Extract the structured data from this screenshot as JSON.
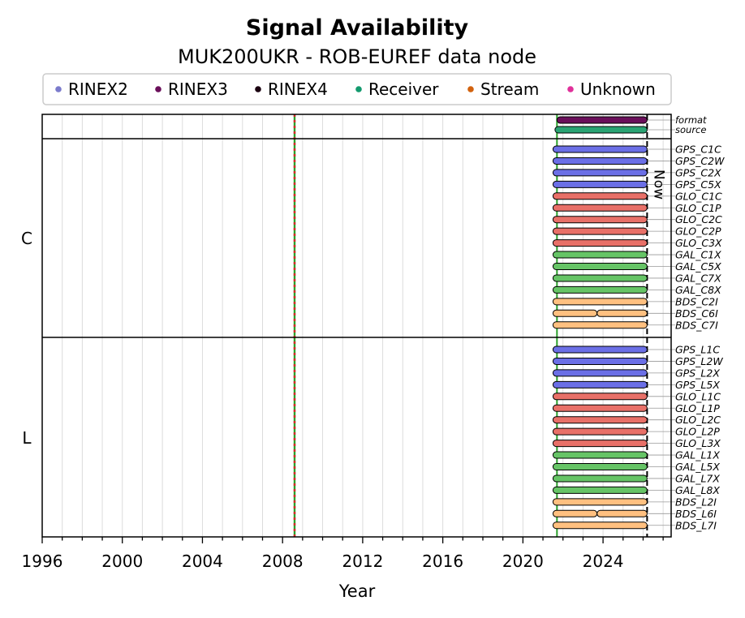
{
  "chart_data": {
    "type": "timeline",
    "title": "Signal Availability",
    "subtitle": "MUK200UKR - ROB-EUREF data node",
    "xlabel": "Year",
    "xlim": [
      1996,
      2027.4
    ],
    "xticks_major": [
      1996,
      2000,
      2004,
      2008,
      2012,
      2016,
      2020,
      2024
    ],
    "now_label": "Now",
    "now_year": 2026.2,
    "vlines": [
      {
        "year": 2008.6,
        "colors": [
          "#2ca02c",
          "#d62728"
        ],
        "style": "dashed"
      },
      {
        "year": 2021.7,
        "colors": [
          "#2ca02c"
        ],
        "style": "solid"
      }
    ],
    "legend": [
      {
        "label": "RINEX2",
        "color": "#7b7bcc"
      },
      {
        "label": "RINEX3",
        "color": "#6a0f5a"
      },
      {
        "label": "RINEX4",
        "color": "#1a0010"
      },
      {
        "label": "Receiver",
        "color": "#139a6e"
      },
      {
        "label": "Stream",
        "color": "#d2620e"
      },
      {
        "label": "Unknown",
        "color": "#e0309a"
      }
    ],
    "meta_rows": [
      {
        "label": "format",
        "color": "#6a0f5a",
        "segments": [
          [
            2021.7,
            2026.2
          ]
        ]
      },
      {
        "label": "source",
        "color": "#2aa373",
        "segments": [
          [
            2021.6,
            2026.2
          ]
        ]
      }
    ],
    "groups": [
      {
        "name": "C",
        "rows": [
          {
            "label": "GPS_C1C",
            "color": "#6b6fe6",
            "segments": [
              [
                2021.5,
                2026.2
              ]
            ]
          },
          {
            "label": "GPS_C2W",
            "color": "#6b6fe6",
            "segments": [
              [
                2021.5,
                2026.2
              ]
            ]
          },
          {
            "label": "GPS_C2X",
            "color": "#6b6fe6",
            "segments": [
              [
                2021.5,
                2026.2
              ]
            ]
          },
          {
            "label": "GPS_C5X",
            "color": "#6b6fe6",
            "segments": [
              [
                2021.5,
                2026.2
              ]
            ]
          },
          {
            "label": "GLO_C1C",
            "color": "#e87068",
            "segments": [
              [
                2021.5,
                2026.2
              ]
            ]
          },
          {
            "label": "GLO_C1P",
            "color": "#e87068",
            "segments": [
              [
                2021.5,
                2026.2
              ]
            ]
          },
          {
            "label": "GLO_C2C",
            "color": "#e87068",
            "segments": [
              [
                2021.5,
                2026.2
              ]
            ]
          },
          {
            "label": "GLO_C2P",
            "color": "#e87068",
            "segments": [
              [
                2021.5,
                2026.2
              ]
            ]
          },
          {
            "label": "GLO_C3X",
            "color": "#e87068",
            "segments": [
              [
                2021.5,
                2026.2
              ]
            ]
          },
          {
            "label": "GAL_C1X",
            "color": "#66c466",
            "segments": [
              [
                2021.5,
                2026.2
              ]
            ]
          },
          {
            "label": "GAL_C5X",
            "color": "#66c466",
            "segments": [
              [
                2021.5,
                2026.2
              ]
            ]
          },
          {
            "label": "GAL_C7X",
            "color": "#66c466",
            "segments": [
              [
                2021.5,
                2026.2
              ]
            ]
          },
          {
            "label": "GAL_C8X",
            "color": "#66c466",
            "segments": [
              [
                2021.5,
                2026.2
              ]
            ]
          },
          {
            "label": "BDS_C2I",
            "color": "#ffc080",
            "segments": [
              [
                2021.5,
                2026.2
              ]
            ]
          },
          {
            "label": "BDS_C6I",
            "color": "#ffc080",
            "segments": [
              [
                2021.5,
                2023.7
              ],
              [
                2023.7,
                2026.2
              ]
            ]
          },
          {
            "label": "BDS_C7I",
            "color": "#ffc080",
            "segments": [
              [
                2021.5,
                2026.2
              ]
            ]
          }
        ]
      },
      {
        "name": "L",
        "rows": [
          {
            "label": "GPS_L1C",
            "color": "#6b6fe6",
            "segments": [
              [
                2021.5,
                2026.2
              ]
            ]
          },
          {
            "label": "GPS_L2W",
            "color": "#6b6fe6",
            "segments": [
              [
                2021.5,
                2026.2
              ]
            ]
          },
          {
            "label": "GPS_L2X",
            "color": "#6b6fe6",
            "segments": [
              [
                2021.5,
                2026.2
              ]
            ]
          },
          {
            "label": "GPS_L5X",
            "color": "#6b6fe6",
            "segments": [
              [
                2021.5,
                2026.2
              ]
            ]
          },
          {
            "label": "GLO_L1C",
            "color": "#e87068",
            "segments": [
              [
                2021.5,
                2026.2
              ]
            ]
          },
          {
            "label": "GLO_L1P",
            "color": "#e87068",
            "segments": [
              [
                2021.5,
                2026.2
              ]
            ]
          },
          {
            "label": "GLO_L2C",
            "color": "#e87068",
            "segments": [
              [
                2021.5,
                2026.2
              ]
            ]
          },
          {
            "label": "GLO_L2P",
            "color": "#e87068",
            "segments": [
              [
                2021.5,
                2026.2
              ]
            ]
          },
          {
            "label": "GLO_L3X",
            "color": "#e87068",
            "segments": [
              [
                2021.5,
                2026.2
              ]
            ]
          },
          {
            "label": "GAL_L1X",
            "color": "#66c466",
            "segments": [
              [
                2021.5,
                2026.2
              ]
            ]
          },
          {
            "label": "GAL_L5X",
            "color": "#66c466",
            "segments": [
              [
                2021.5,
                2026.2
              ]
            ]
          },
          {
            "label": "GAL_L7X",
            "color": "#66c466",
            "segments": [
              [
                2021.5,
                2026.2
              ]
            ]
          },
          {
            "label": "GAL_L8X",
            "color": "#66c466",
            "segments": [
              [
                2021.5,
                2026.2
              ]
            ]
          },
          {
            "label": "BDS_L2I",
            "color": "#ffc080",
            "segments": [
              [
                2021.5,
                2026.2
              ]
            ]
          },
          {
            "label": "BDS_L6I",
            "color": "#ffc080",
            "segments": [
              [
                2021.5,
                2023.7
              ],
              [
                2023.7,
                2026.2
              ]
            ]
          },
          {
            "label": "BDS_L7I",
            "color": "#ffc080",
            "segments": [
              [
                2021.5,
                2026.2
              ]
            ]
          }
        ]
      }
    ]
  }
}
